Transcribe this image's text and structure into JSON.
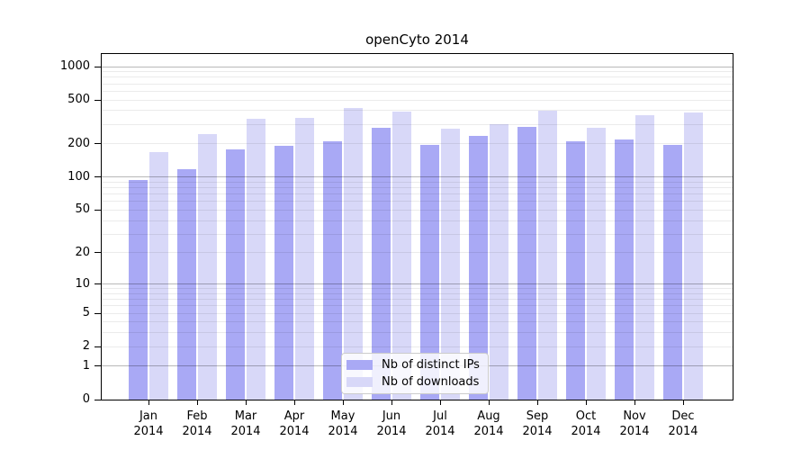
{
  "chart_data": {
    "type": "bar",
    "title": "openCyto 2014",
    "months": [
      "Jan",
      "Feb",
      "Mar",
      "Apr",
      "May",
      "Jun",
      "Jul",
      "Aug",
      "Sep",
      "Oct",
      "Nov",
      "Dec"
    ],
    "year": "2014",
    "categories": [
      "Jan 2014",
      "Feb 2014",
      "Mar 2014",
      "Apr 2014",
      "May 2014",
      "Jun 2014",
      "Jul 2014",
      "Aug 2014",
      "Sep 2014",
      "Oct 2014",
      "Nov 2014",
      "Dec 2014"
    ],
    "series": [
      {
        "name": "Nb of distinct IPs",
        "color": "#a9a9f5",
        "values": [
          95,
          118,
          178,
          192,
          210,
          280,
          195,
          236,
          285,
          211,
          219,
          195
        ]
      },
      {
        "name": "Nb of downloads",
        "color": "#d8d8f8",
        "values": [
          170,
          245,
          337,
          344,
          425,
          390,
          275,
          302,
          400,
          280,
          365,
          385
        ]
      }
    ],
    "y_ticks": [
      0,
      1,
      2,
      5,
      10,
      20,
      50,
      100,
      200,
      500,
      1000
    ],
    "y_scale": "log10(1+y)",
    "ylim": [
      0,
      1150
    ],
    "grid": "horizontal minor+major gridlines drawn over bars",
    "legend_position": "inside bottom-center"
  }
}
